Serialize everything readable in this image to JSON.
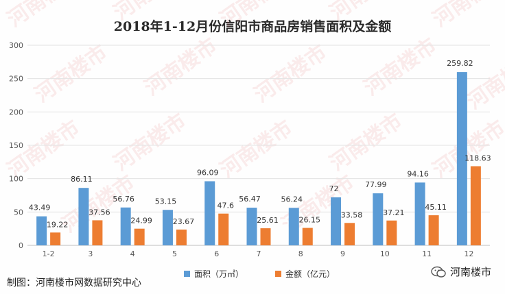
{
  "watermark": "河南楼市",
  "chart_data": {
    "type": "bar",
    "title": "2018年1-12月份信阳市商品房销售面积及金额",
    "categories": [
      "1-2",
      "3",
      "4",
      "5",
      "6",
      "7",
      "8",
      "9",
      "10",
      "11",
      "12"
    ],
    "series": [
      {
        "name": "面积（万㎡）",
        "color": "#5b9bd5",
        "values": [
          43.49,
          86.11,
          56.76,
          53.15,
          96.09,
          56.47,
          56.24,
          72,
          77.99,
          94.16,
          259.82
        ]
      },
      {
        "name": "金额（亿元）",
        "color": "#ed7d31",
        "values": [
          19.22,
          37.56,
          24.99,
          23.67,
          47.6,
          25.61,
          26.15,
          33.58,
          37.21,
          45.11,
          118.63
        ]
      }
    ],
    "ylim": [
      0,
      300
    ],
    "yticks": [
      0,
      50,
      100,
      150,
      200,
      250,
      300
    ],
    "data_labels": {
      "s0": [
        "43.49",
        "86.11",
        "56.76",
        "53.15",
        "96.09",
        "56.47",
        "56.24",
        "72",
        "77.99",
        "94.16",
        "259.82"
      ],
      "s1": [
        "19.22",
        "37.56",
        "24.99",
        "23.67",
        "47.6",
        "25.61",
        "26.15",
        "33.58",
        "37.21",
        "45.11",
        "118.63"
      ]
    },
    "grid": true,
    "legend_position": "bottom"
  },
  "footer": {
    "credit": "制图：河南楼市网数据研究中心",
    "brand": "河南楼市"
  }
}
